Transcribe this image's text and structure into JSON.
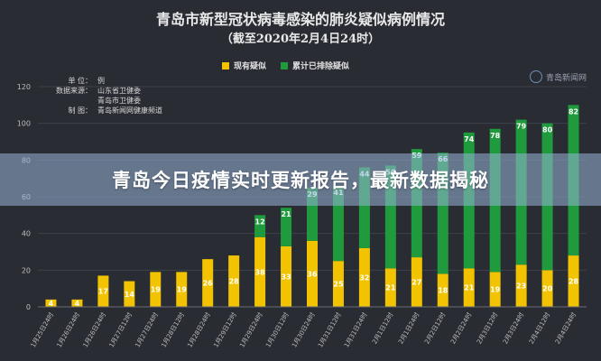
{
  "title": "青岛市新型冠状病毒感染的肺炎疑似病例情况",
  "subtitle": "（截至2020年2月4日24时）",
  "banner": "青岛今日疫情实时更新报告，最新数据揭秘",
  "watermark": "青岛新闻网",
  "info": [
    {
      "key": "单  位：",
      "value": "例"
    },
    {
      "key": "数据来源：",
      "value": "山东省卫健委"
    },
    {
      "key": "",
      "value": "青岛市卫健委"
    },
    {
      "key": "制  图：",
      "value": "青岛新闻网健康频道"
    }
  ],
  "colors": {
    "current": "#f2c300",
    "excluded": "#1f9a3c",
    "axis": "#bdbdbd",
    "grid": "#3d4049"
  },
  "chart_data": {
    "type": "bar",
    "stacked": true,
    "categories": [
      "1月25日24时",
      "1月26日24时",
      "1月26日24时",
      "1月27日12时",
      "1月27日24时",
      "1月28日12时",
      "1月28日24时",
      "1月29日12时",
      "1月29日24时",
      "1月30日12时",
      "1月30日24时",
      "1月31日12时",
      "1月31日24时",
      "2月1日12时",
      "2月1日24时",
      "2月2日12时",
      "2月2日24时",
      "2月3日12时",
      "2月3日24时",
      "2月4日12时",
      "2月4日24时"
    ],
    "series": [
      {
        "name": "现有疑似",
        "values": [
          4,
          4,
          17,
          14,
          19,
          19,
          26,
          28,
          38,
          33,
          36,
          25,
          32,
          21,
          27,
          18,
          21,
          19,
          23,
          20,
          28
        ]
      },
      {
        "name": "累计已排除疑似",
        "values": [
          0,
          0,
          0,
          0,
          0,
          0,
          0,
          0,
          12,
          21,
          29,
          41,
          44,
          56,
          59,
          66,
          74,
          78,
          79,
          80,
          82
        ]
      }
    ],
    "ylim": [
      0,
      120
    ],
    "yticks": [
      0,
      20,
      40,
      60,
      80,
      100,
      120
    ],
    "grid": true,
    "legend": "top"
  }
}
